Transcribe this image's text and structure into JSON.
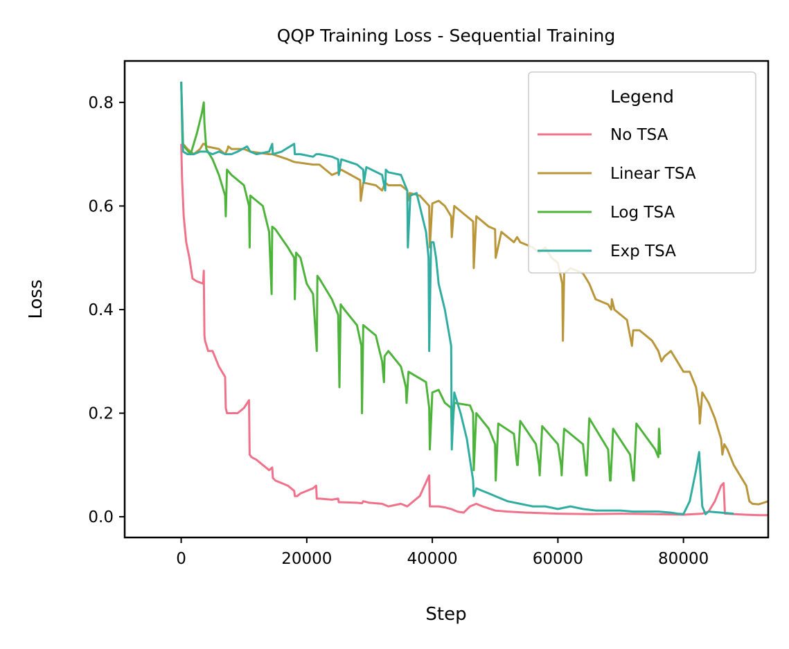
{
  "chart_data": {
    "type": "line",
    "title": "QQP Training Loss - Sequential Training",
    "xlabel": "Step",
    "ylabel": "Loss",
    "xlim": [
      -9000,
      93500
    ],
    "ylim": [
      -0.04,
      0.88
    ],
    "xticks": [
      0,
      20000,
      40000,
      60000,
      80000
    ],
    "xtick_labels": [
      "0",
      "20000",
      "40000",
      "60000",
      "80000"
    ],
    "yticks": [
      0.0,
      0.2,
      0.4,
      0.6,
      0.8
    ],
    "ytick_labels": [
      "0.0",
      "0.2",
      "0.4",
      "0.6",
      "0.8"
    ],
    "grid": false,
    "legend": {
      "title": "Legend",
      "position": "upper right"
    },
    "series": [
      {
        "name": "No TSA",
        "color": "#f0718a",
        "x": [
          0,
          150,
          400,
          800,
          1300,
          1800,
          2400,
          3500,
          3600,
          3700,
          3800,
          4300,
          5000,
          6000,
          7000,
          7100,
          7300,
          8000,
          9000,
          10000,
          10800,
          10900,
          11200,
          12000,
          13000,
          14000,
          14500,
          14600,
          15000,
          16000,
          17000,
          18000,
          18100,
          18500,
          19000,
          20000,
          21000,
          21500,
          21600,
          22000,
          24000,
          25000,
          25100,
          25500,
          28000,
          28800,
          29000,
          30000,
          32000,
          33000,
          35000,
          36000,
          37000,
          38000,
          39500,
          39600,
          40000,
          41000,
          42000,
          43000,
          44000,
          45000,
          46000,
          47000,
          48000,
          50000,
          52000,
          55000,
          60000,
          65000,
          70000,
          75000,
          80000,
          83000,
          84000,
          85000,
          86000,
          86400,
          86600,
          87000,
          88000,
          90000,
          92000,
          93500
        ],
        "y": [
          0.72,
          0.65,
          0.58,
          0.53,
          0.5,
          0.46,
          0.455,
          0.45,
          0.475,
          0.35,
          0.34,
          0.32,
          0.32,
          0.29,
          0.27,
          0.21,
          0.2,
          0.2,
          0.2,
          0.21,
          0.225,
          0.12,
          0.115,
          0.11,
          0.1,
          0.09,
          0.095,
          0.075,
          0.07,
          0.065,
          0.06,
          0.05,
          0.04,
          0.04,
          0.045,
          0.05,
          0.055,
          0.06,
          0.035,
          0.035,
          0.033,
          0.035,
          0.028,
          0.028,
          0.027,
          0.026,
          0.03,
          0.027,
          0.025,
          0.02,
          0.025,
          0.02,
          0.03,
          0.04,
          0.08,
          0.02,
          0.02,
          0.02,
          0.018,
          0.015,
          0.01,
          0.008,
          0.02,
          0.025,
          0.02,
          0.012,
          0.01,
          0.008,
          0.006,
          0.005,
          0.006,
          0.005,
          0.004,
          0.006,
          0.01,
          0.03,
          0.06,
          0.065,
          0.006,
          0.006,
          0.005,
          0.004,
          0.003,
          0.003
        ]
      },
      {
        "name": "Linear TSA",
        "color": "#b9963a",
        "x": [
          0,
          300,
          1000,
          2000,
          3000,
          3500,
          3700,
          4000,
          6000,
          7000,
          7400,
          7500,
          8000,
          10000,
          11000,
          14000,
          14500,
          17000,
          18000,
          21000,
          22000,
          24000,
          25000,
          25500,
          27000,
          28500,
          28600,
          29000,
          31000,
          32000,
          32500,
          33000,
          35000,
          36000,
          36100,
          36400,
          38000,
          39500,
          39600,
          40000,
          41000,
          42000,
          43000,
          43100,
          43500,
          45000,
          46500,
          46600,
          47000,
          49000,
          50000,
          50100,
          51000,
          53000,
          53500,
          54000,
          56000,
          57000,
          58000,
          59000,
          60000,
          60700,
          60800,
          61000,
          62000,
          64000,
          65000,
          66000,
          68000,
          68500,
          68600,
          69000,
          71000,
          71800,
          72000,
          73000,
          75000,
          76000,
          76500,
          77000,
          78000,
          79000,
          80000,
          81000,
          82000,
          82500,
          82600,
          83000,
          84000,
          85000,
          86000,
          86200,
          86500,
          87000,
          88000,
          89000,
          90000,
          90500,
          91000,
          92000,
          93500
        ],
        "y": [
          0.84,
          0.72,
          0.71,
          0.7,
          0.71,
          0.72,
          0.72,
          0.715,
          0.71,
          0.7,
          0.71,
          0.715,
          0.71,
          0.71,
          0.705,
          0.7,
          0.7,
          0.69,
          0.685,
          0.68,
          0.68,
          0.66,
          0.665,
          0.67,
          0.66,
          0.65,
          0.61,
          0.645,
          0.64,
          0.63,
          0.645,
          0.64,
          0.64,
          0.63,
          0.61,
          0.625,
          0.62,
          0.6,
          0.52,
          0.605,
          0.61,
          0.6,
          0.58,
          0.54,
          0.6,
          0.585,
          0.57,
          0.48,
          0.58,
          0.56,
          0.555,
          0.5,
          0.55,
          0.53,
          0.54,
          0.53,
          0.52,
          0.51,
          0.52,
          0.5,
          0.49,
          0.45,
          0.34,
          0.47,
          0.48,
          0.47,
          0.45,
          0.42,
          0.41,
          0.4,
          0.42,
          0.4,
          0.38,
          0.33,
          0.36,
          0.36,
          0.34,
          0.32,
          0.3,
          0.31,
          0.32,
          0.3,
          0.28,
          0.28,
          0.25,
          0.21,
          0.18,
          0.24,
          0.22,
          0.19,
          0.15,
          0.12,
          0.14,
          0.13,
          0.1,
          0.08,
          0.06,
          0.03,
          0.025,
          0.024,
          0.03
        ]
      },
      {
        "name": "Log TSA",
        "color": "#4eb33a",
        "x": [
          0,
          200,
          800,
          1500,
          2500,
          3300,
          3600,
          3700,
          4000,
          5000,
          6000,
          7000,
          7100,
          7300,
          8000,
          10000,
          10800,
          10900,
          11000,
          12000,
          13000,
          14000,
          14400,
          14500,
          15000,
          17000,
          18000,
          18100,
          18300,
          19000,
          20000,
          21000,
          21600,
          21700,
          22000,
          24000,
          25000,
          25200,
          25400,
          26000,
          28000,
          28700,
          28800,
          29000,
          31000,
          32000,
          32300,
          32400,
          33000,
          35000,
          35800,
          35900,
          36200,
          39000,
          39500,
          39600,
          40000,
          41000,
          42000,
          43000,
          43100,
          43500,
          46000,
          46500,
          46600,
          47000,
          49000,
          50000,
          50100,
          50500,
          53000,
          53500,
          53600,
          54000,
          56500,
          57000,
          57100,
          57500,
          60000,
          60500,
          60600,
          61000,
          64000,
          64500,
          64600,
          65000,
          68000,
          68300,
          68400,
          68800,
          71500,
          72000,
          72100,
          72500,
          75500,
          76000,
          76100,
          76300
        ],
        "y": [
          0.84,
          0.72,
          0.71,
          0.7,
          0.74,
          0.78,
          0.8,
          0.76,
          0.71,
          0.69,
          0.66,
          0.62,
          0.58,
          0.67,
          0.66,
          0.64,
          0.6,
          0.52,
          0.62,
          0.61,
          0.6,
          0.55,
          0.43,
          0.56,
          0.555,
          0.52,
          0.5,
          0.42,
          0.51,
          0.5,
          0.45,
          0.43,
          0.32,
          0.465,
          0.46,
          0.42,
          0.39,
          0.25,
          0.41,
          0.4,
          0.37,
          0.33,
          0.2,
          0.37,
          0.35,
          0.3,
          0.26,
          0.31,
          0.32,
          0.29,
          0.25,
          0.22,
          0.28,
          0.26,
          0.21,
          0.13,
          0.24,
          0.245,
          0.22,
          0.21,
          0.15,
          0.22,
          0.215,
          0.2,
          0.09,
          0.2,
          0.17,
          0.14,
          0.07,
          0.18,
          0.16,
          0.1,
          0.1,
          0.185,
          0.14,
          0.1,
          0.08,
          0.175,
          0.14,
          0.1,
          0.08,
          0.17,
          0.14,
          0.08,
          0.08,
          0.19,
          0.13,
          0.07,
          0.07,
          0.17,
          0.12,
          0.07,
          0.07,
          0.18,
          0.13,
          0.115,
          0.17,
          0.12
        ]
      },
      {
        "name": "Exp TSA",
        "color": "#31aca0",
        "x": [
          0,
          300,
          1000,
          2000,
          3000,
          4000,
          5000,
          6000,
          7000,
          8000,
          9000,
          10500,
          11000,
          12000,
          14000,
          14500,
          14600,
          16000,
          18000,
          18100,
          19000,
          21000,
          21500,
          22000,
          24000,
          25000,
          25100,
          25500,
          28000,
          29000,
          29100,
          29500,
          32000,
          32500,
          32600,
          33000,
          35000,
          36000,
          36100,
          36500,
          37500,
          38000,
          39000,
          39400,
          39500,
          39800,
          40200,
          40600,
          41000,
          42000,
          43000,
          43100,
          43500,
          44500,
          45500,
          46500,
          46600,
          47000,
          48000,
          49000,
          50000,
          52000,
          54000,
          56000,
          58000,
          60000,
          62000,
          64000,
          66000,
          68000,
          70000,
          72000,
          74000,
          76000,
          78000,
          79000,
          80000,
          81000,
          82000,
          82500,
          83000,
          83500,
          84000,
          86000,
          88000
        ],
        "y": [
          0.84,
          0.705,
          0.7,
          0.7,
          0.705,
          0.705,
          0.7,
          0.705,
          0.7,
          0.7,
          0.705,
          0.715,
          0.705,
          0.7,
          0.705,
          0.72,
          0.7,
          0.705,
          0.72,
          0.7,
          0.7,
          0.695,
          0.7,
          0.7,
          0.695,
          0.69,
          0.66,
          0.69,
          0.68,
          0.67,
          0.645,
          0.675,
          0.66,
          0.63,
          0.67,
          0.665,
          0.66,
          0.63,
          0.52,
          0.62,
          0.625,
          0.6,
          0.55,
          0.5,
          0.32,
          0.53,
          0.53,
          0.5,
          0.45,
          0.4,
          0.33,
          0.13,
          0.24,
          0.2,
          0.15,
          0.07,
          0.04,
          0.055,
          0.05,
          0.045,
          0.04,
          0.03,
          0.025,
          0.02,
          0.02,
          0.015,
          0.02,
          0.015,
          0.012,
          0.012,
          0.012,
          0.01,
          0.01,
          0.01,
          0.008,
          0.006,
          0.005,
          0.03,
          0.09,
          0.125,
          0.02,
          0.005,
          0.01,
          0.008,
          0.006
        ]
      }
    ]
  }
}
